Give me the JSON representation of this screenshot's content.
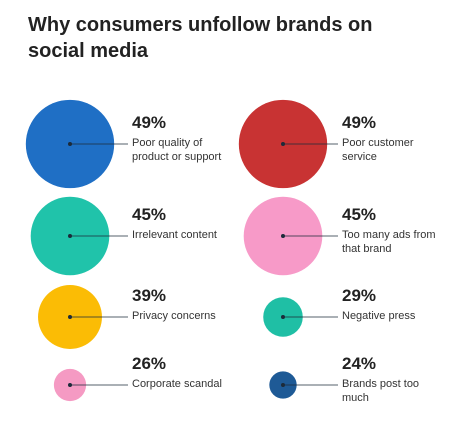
{
  "chart_data": {
    "type": "bubble",
    "title": "Why consumers unfollow brands on social media",
    "categories": [
      "Poor quality of product or support",
      "Poor customer service",
      "Irrelevant content",
      "Too many ads from that brand",
      "Privacy concerns",
      "Negative press",
      "Corporate scandal",
      "Brands post too much"
    ],
    "values": [
      49,
      49,
      45,
      45,
      39,
      29,
      26,
      24
    ],
    "value_labels": [
      "49%",
      "49%",
      "45%",
      "45%",
      "39%",
      "29%",
      "26%",
      "24%"
    ],
    "colors": [
      "#1f6fc5",
      "#c83333",
      "#20c3aa",
      "#f79ac8",
      "#fbbc05",
      "#1fbfa5",
      "#f59ac3",
      "#1e5a96"
    ]
  }
}
